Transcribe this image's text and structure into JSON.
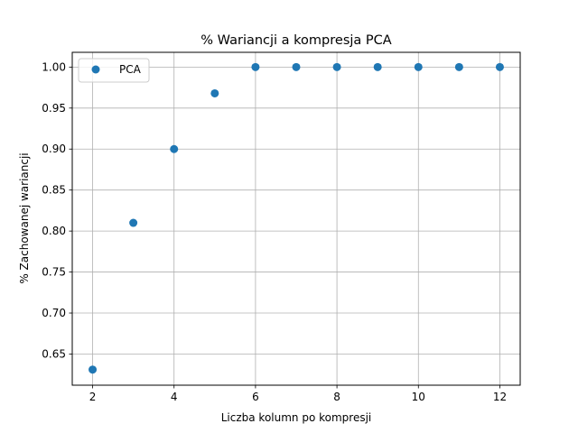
{
  "chart_data": {
    "type": "scatter",
    "title": "% Wariancji a kompresja PCA",
    "xlabel": "Liczba kolumn po kompresji",
    "ylabel": "% Zachowanej wariancji",
    "xlim": [
      1.5,
      12.5
    ],
    "ylim": [
      0.612,
      1.018
    ],
    "xticks": [
      2,
      4,
      6,
      8,
      10,
      12
    ],
    "xtick_labels": [
      "2",
      "4",
      "6",
      "8",
      "10",
      "12"
    ],
    "yticks": [
      0.65,
      0.7,
      0.75,
      0.8,
      0.85,
      0.9,
      0.95,
      1.0
    ],
    "ytick_labels": [
      "0.65",
      "0.70",
      "0.75",
      "0.80",
      "0.85",
      "0.90",
      "0.95",
      "1.00"
    ],
    "grid": true,
    "legend_position": "top-left",
    "series": [
      {
        "name": "PCA",
        "color": "#1f77b4",
        "x": [
          2,
          3,
          4,
          5,
          6,
          7,
          8,
          9,
          10,
          11,
          12
        ],
        "y": [
          0.631,
          0.81,
          0.9,
          0.968,
          1.0,
          1.0,
          1.0,
          1.0,
          1.0,
          1.0,
          1.0
        ]
      }
    ]
  }
}
